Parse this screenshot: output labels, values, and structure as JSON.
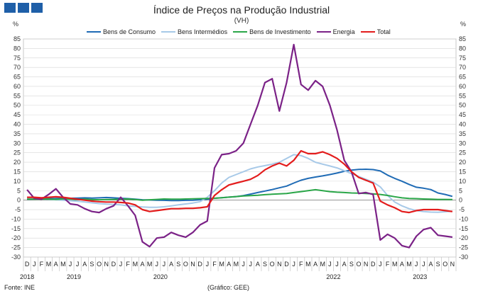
{
  "header": {
    "title": "Índice de Preços na Produção Industrial",
    "subtitle": "(VH)",
    "unit_left": "%",
    "unit_right": "%"
  },
  "footer": {
    "source": "Fonte: INE",
    "credit": "(Gráfico: GEE)"
  },
  "colors": {
    "brand": "#1f5fa8",
    "grid": "#d6d6d6"
  },
  "chart_data": {
    "type": "line",
    "x": [
      "2018-12",
      "2019-01",
      "2019-02",
      "2019-03",
      "2019-04",
      "2019-05",
      "2019-06",
      "2019-07",
      "2019-08",
      "2019-09",
      "2019-10",
      "2019-11",
      "2019-12",
      "2020-01",
      "2020-02",
      "2020-03",
      "2020-04",
      "2020-05",
      "2020-06",
      "2020-07",
      "2020-08",
      "2020-09",
      "2020-10",
      "2020-11",
      "2020-12",
      "2021-01",
      "2021-02",
      "2021-03",
      "2021-04",
      "2021-05",
      "2021-06",
      "2021-07",
      "2021-08",
      "2021-09",
      "2021-10",
      "2021-11",
      "2021-12",
      "2022-01",
      "2022-02",
      "2022-03",
      "2022-04",
      "2022-05",
      "2022-06",
      "2022-07",
      "2022-08",
      "2022-09",
      "2022-10",
      "2022-11",
      "2022-12",
      "2023-01",
      "2023-02",
      "2023-03",
      "2023-04",
      "2023-05",
      "2023-06",
      "2023-07",
      "2023-08",
      "2023-09",
      "2023-10",
      "2023-11"
    ],
    "month_labels": [
      "D",
      "J",
      "F",
      "M",
      "A",
      "M",
      "J",
      "J",
      "A",
      "S",
      "O",
      "N",
      "D",
      "J",
      "F",
      "M",
      "A",
      "M",
      "J",
      "J",
      "A",
      "S",
      "O",
      "N",
      "D",
      "J",
      "F",
      "M",
      "A",
      "M",
      "J",
      "J",
      "A",
      "S",
      "O",
      "N",
      "D",
      "J",
      "F",
      "M",
      "A",
      "M",
      "J",
      "J",
      "A",
      "S",
      "O",
      "N",
      "D",
      "J",
      "F",
      "M",
      "A",
      "M",
      "J",
      "J",
      "A",
      "S",
      "O",
      "N"
    ],
    "year_labels": [
      {
        "label": "2018",
        "index": 0
      },
      {
        "label": "2019",
        "index": 6.5
      },
      {
        "label": "2020",
        "index": 18.5
      },
      {
        "label": "2022",
        "index": 42.5
      },
      {
        "label": "2023",
        "index": 54.5
      }
    ],
    "yticks": [
      -30,
      -25,
      -20,
      -15,
      -10,
      -5,
      0,
      5,
      10,
      15,
      20,
      25,
      30,
      35,
      40,
      45,
      50,
      55,
      60,
      65,
      70,
      75,
      80,
      85
    ],
    "ylim": [
      -30,
      85
    ],
    "series": [
      {
        "name": "Bens de Consumo",
        "color": "#1f6bb5",
        "values": [
          0.5,
          0.6,
          0.7,
          0.8,
          0.9,
          1.0,
          1.0,
          1.1,
          1.2,
          1.1,
          1.2,
          1.4,
          1.2,
          1.0,
          0.8,
          0.5,
          0.2,
          0.1,
          0.0,
          -0.1,
          -0.2,
          -0.2,
          -0.1,
          0.0,
          0.2,
          0.5,
          1.0,
          1.3,
          1.6,
          1.9,
          2.4,
          3.2,
          4.0,
          4.8,
          5.6,
          6.5,
          7.4,
          9.0,
          10.5,
          11.5,
          12.2,
          12.8,
          13.5,
          14.3,
          15.2,
          15.8,
          16.2,
          16.3,
          16.1,
          15.4,
          13.2,
          11.5,
          10.0,
          8.3,
          6.8,
          6.3,
          5.6,
          3.8,
          3.0,
          2.0
        ]
      },
      {
        "name": "Bens Intermédios",
        "color": "#a7c9e8",
        "values": [
          1.0,
          0.8,
          0.6,
          0.4,
          0.2,
          0.0,
          -0.3,
          -0.6,
          -1.0,
          -1.4,
          -1.8,
          -2.1,
          -2.3,
          -2.5,
          -3.0,
          -3.3,
          -3.6,
          -3.8,
          -3.8,
          -3.5,
          -3.0,
          -2.5,
          -2.0,
          -1.5,
          -0.8,
          1.5,
          5.0,
          9.0,
          12.0,
          13.5,
          15.0,
          16.5,
          17.5,
          18.2,
          19.0,
          20.0,
          22.0,
          24.0,
          23.5,
          22.0,
          20.0,
          19.0,
          18.0,
          17.0,
          15.5,
          14.0,
          12.5,
          11.0,
          9.5,
          7.0,
          2.5,
          -1.0,
          -3.0,
          -4.5,
          -5.5,
          -6.0,
          -6.3,
          -6.4,
          -6.1,
          -5.8
        ]
      },
      {
        "name": "Bens de Investimento",
        "color": "#2aa648",
        "values": [
          0.5,
          0.5,
          0.6,
          0.5,
          0.4,
          0.6,
          0.5,
          0.4,
          0.5,
          0.3,
          0.2,
          0.3,
          0.4,
          0.5,
          0.6,
          0.3,
          0.0,
          0.2,
          0.4,
          0.6,
          0.5,
          0.5,
          0.6,
          0.7,
          0.8,
          0.9,
          1.0,
          1.3,
          1.6,
          1.9,
          2.2,
          2.4,
          2.6,
          2.9,
          3.1,
          3.3,
          3.5,
          4.0,
          4.5,
          5.0,
          5.5,
          5.0,
          4.5,
          4.2,
          4.0,
          3.8,
          3.7,
          3.5,
          3.3,
          3.0,
          2.5,
          1.8,
          1.2,
          0.9,
          0.8,
          0.6,
          0.5,
          0.4,
          0.4,
          0.3
        ]
      },
      {
        "name": "Energia",
        "color": "#7b2287",
        "values": [
          5.5,
          1.0,
          0.5,
          3.0,
          6.0,
          1.5,
          -2.0,
          -2.5,
          -4.5,
          -6.0,
          -6.5,
          -4.5,
          -3.0,
          1.5,
          -3.0,
          -8.0,
          -22.0,
          -24.5,
          -20.0,
          -19.5,
          -17.0,
          -18.5,
          -19.5,
          -17.0,
          -13.0,
          -11.0,
          17.0,
          24.0,
          24.5,
          26.0,
          30.0,
          40.0,
          50.0,
          62.0,
          64.0,
          47.0,
          62.0,
          82.0,
          61.0,
          58.0,
          63.0,
          60.0,
          50.0,
          37.0,
          21.0,
          15.0,
          3.5,
          4.0,
          3.0,
          -21.0,
          -18.0,
          -20.0,
          -24.0,
          -25.0,
          -19.0,
          -15.5,
          -14.5,
          -18.5,
          -19.0,
          -19.5
        ]
      },
      {
        "name": "Total",
        "color": "#e31c1c",
        "values": [
          1.5,
          1.5,
          1.2,
          1.5,
          1.8,
          1.5,
          1.0,
          0.5,
          0.0,
          -0.5,
          -0.8,
          -1.0,
          -1.0,
          -1.2,
          -1.5,
          -2.5,
          -5.0,
          -6.0,
          -5.5,
          -5.0,
          -4.5,
          -4.5,
          -4.3,
          -4.3,
          -4.0,
          -3.5,
          2.5,
          5.5,
          8.0,
          9.0,
          10.0,
          11.0,
          13.0,
          16.0,
          18.0,
          19.5,
          18.0,
          21.0,
          26.0,
          24.5,
          24.5,
          25.5,
          24.0,
          22.0,
          19.0,
          15.0,
          12.0,
          10.5,
          9.0,
          -0.5,
          -2.5,
          -4.0,
          -6.0,
          -6.5,
          -5.5,
          -5.0,
          -5.0,
          -5.0,
          -5.5,
          -6.0
        ]
      }
    ]
  }
}
